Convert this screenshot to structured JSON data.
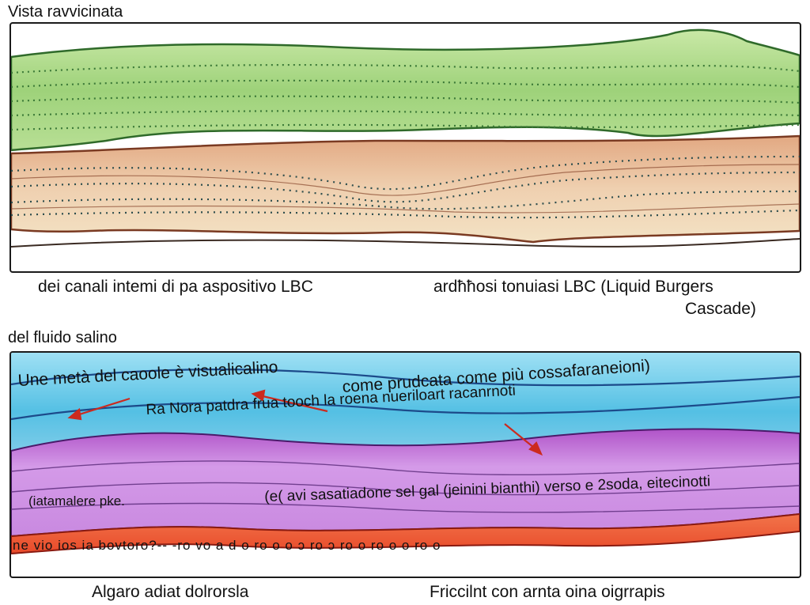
{
  "top_section": {
    "heading": "Vista ravvicinata",
    "caption_left": "dei canali intemi di pa aspositivo LBC",
    "caption_right_line1": "ardħħosi tonuiasi LBC (Liquid Burgers",
    "caption_right_line2": "Cascade)"
  },
  "bottom_section": {
    "heading": "del fluido salino",
    "annotations": {
      "a1": "Une metà del caoole è visualicalino",
      "a2": "come prudcata come più cossafaraneioni)",
      "a3": "Ra Nora patdra frua tooch la roena nueriloart racanrnoti",
      "a4": "(iatamalere pke.",
      "a5": "(e( avi sasatiadone sel gal (jeinini bianthi) verso e 2soda, eitecinotti",
      "a6": "ne vio ios ia bovtoro?-- -ro vo a d o ro o o ɔ ro ɔ ro o ro o o ro o"
    },
    "caption_left": "Algaro adiat dolrorsla",
    "caption_right": "Friccilnt con arnta oina oigrrapis"
  },
  "colors": {
    "green_band": "#9ed27a",
    "tan_band": "#e8c4a2",
    "blue_band": "#5cc4e6",
    "purple_band": "#c77fe0",
    "red_band": "#ee5a35",
    "arrow": "#cc2a1e"
  }
}
